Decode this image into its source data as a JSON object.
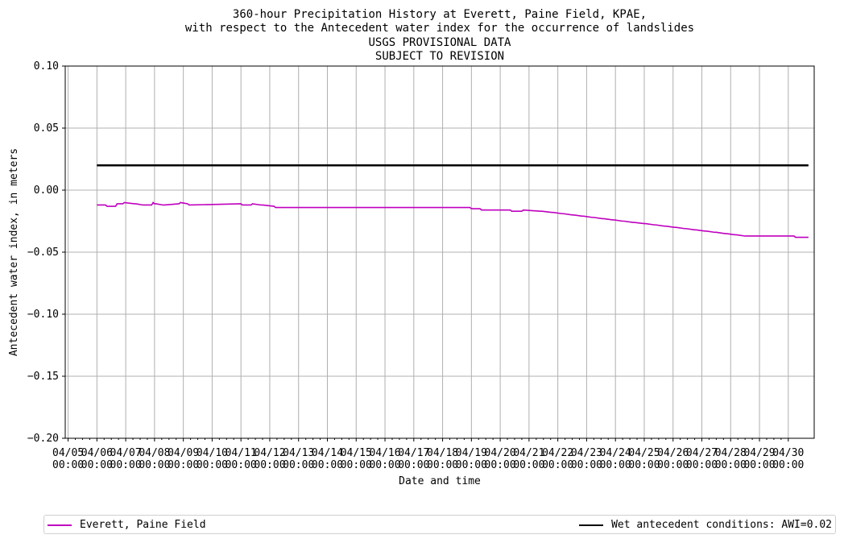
{
  "chart_data": {
    "type": "line",
    "title": [
      "360-hour Precipitation History at Everett, Paine Field, KPAE,",
      "with respect to the Antecedent water index for the occurrence of landslides",
      "USGS PROVISIONAL DATA",
      "SUBJECT TO REVISION"
    ],
    "xlabel": "Date and time",
    "ylabel": "Antecedent water index, in meters",
    "ylim": [
      -0.2,
      0.1
    ],
    "xlim": [
      -0.1,
      25.9
    ],
    "yticks": [
      "0.10",
      "0.05",
      "0.00",
      "−0.05",
      "−0.10",
      "−0.15",
      "−0.20"
    ],
    "ytick_values": [
      0.1,
      0.05,
      0.0,
      -0.05,
      -0.1,
      -0.15,
      -0.2
    ],
    "xticks": [
      {
        "date": "04/05",
        "time": "00:00"
      },
      {
        "date": "04/06",
        "time": "00:00"
      },
      {
        "date": "04/07",
        "time": "00:00"
      },
      {
        "date": "04/08",
        "time": "00:00"
      },
      {
        "date": "04/09",
        "time": "00:00"
      },
      {
        "date": "04/10",
        "time": "00:00"
      },
      {
        "date": "04/11",
        "time": "00:00"
      },
      {
        "date": "04/12",
        "time": "00:00"
      },
      {
        "date": "04/13",
        "time": "00:00"
      },
      {
        "date": "04/14",
        "time": "00:00"
      },
      {
        "date": "04/15",
        "time": "00:00"
      },
      {
        "date": "04/16",
        "time": "00:00"
      },
      {
        "date": "04/17",
        "time": "00:00"
      },
      {
        "date": "04/18",
        "time": "00:00"
      },
      {
        "date": "04/19",
        "time": "00:00"
      },
      {
        "date": "04/20",
        "time": "00:00"
      },
      {
        "date": "04/21",
        "time": "00:00"
      },
      {
        "date": "04/22",
        "time": "00:00"
      },
      {
        "date": "04/23",
        "time": "00:00"
      },
      {
        "date": "04/24",
        "time": "00:00"
      },
      {
        "date": "04/25",
        "time": "00:00"
      },
      {
        "date": "04/26",
        "time": "00:00"
      },
      {
        "date": "04/27",
        "time": "00:00"
      },
      {
        "date": "04/28",
        "time": "00:00"
      },
      {
        "date": "04/29",
        "time": "00:00"
      },
      {
        "date": "04/30",
        "time": "00:00"
      }
    ],
    "grid": true,
    "legend_placement": "below",
    "series": [
      {
        "name": "Everett, Paine Field",
        "color": "#bf00bf",
        "style": "step",
        "x": [
          1.0,
          1.3,
          1.35,
          1.65,
          1.7,
          1.9,
          1.95,
          2.3,
          2.35,
          2.6,
          2.65,
          2.9,
          2.95,
          3.0,
          3.05,
          3.3,
          3.35,
          3.85,
          3.9,
          4.15,
          4.2,
          6.0,
          6.05,
          6.35,
          6.4,
          6.7,
          6.75,
          7.15,
          7.2,
          13.95,
          14.0,
          14.3,
          14.35,
          15.35,
          15.4,
          15.75,
          15.8,
          16.4,
          16.45,
          16.8,
          16.85,
          17.15,
          17.2,
          17.5,
          17.55,
          17.85,
          17.9,
          18.2,
          18.25,
          18.55,
          18.6,
          18.9,
          18.95,
          19.25,
          19.3,
          19.6,
          19.65,
          20.0,
          20.05,
          20.35,
          20.4,
          20.7,
          20.75,
          21.05,
          21.1,
          21.4,
          21.45,
          21.75,
          21.8,
          22.1,
          22.15,
          22.45,
          22.5,
          22.8,
          22.85,
          23.15,
          23.2,
          23.5,
          23.55,
          23.85,
          23.9,
          24.2,
          24.25,
          24.55,
          24.6,
          25.2,
          25.25,
          25.7
        ],
        "y": [
          -0.012,
          -0.012,
          -0.013,
          -0.013,
          -0.011,
          -0.011,
          -0.01,
          -0.011,
          -0.011,
          -0.012,
          -0.012,
          -0.012,
          -0.01,
          -0.011,
          -0.011,
          -0.012,
          -0.012,
          -0.011,
          -0.01,
          -0.011,
          -0.012,
          -0.011,
          -0.012,
          -0.012,
          -0.011,
          -0.012,
          -0.012,
          -0.013,
          -0.014,
          -0.014,
          -0.015,
          -0.015,
          -0.016,
          -0.016,
          -0.017,
          -0.017,
          -0.016,
          -0.017,
          -0.017,
          -0.018,
          -0.018,
          -0.019,
          -0.019,
          -0.02,
          -0.02,
          -0.021,
          -0.021,
          -0.022,
          -0.022,
          -0.023,
          -0.023,
          -0.024,
          -0.024,
          -0.025,
          -0.025,
          -0.026,
          -0.026,
          -0.027,
          -0.027,
          -0.028,
          -0.028,
          -0.029,
          -0.029,
          -0.03,
          -0.03,
          -0.031,
          -0.031,
          -0.032,
          -0.032,
          -0.033,
          -0.033,
          -0.034,
          -0.034,
          -0.035,
          -0.035,
          -0.036,
          -0.036,
          -0.037,
          -0.037,
          -0.037,
          -0.037,
          -0.037,
          -0.037,
          -0.037,
          -0.037,
          -0.037,
          -0.038,
          -0.038
        ]
      },
      {
        "name": "Wet antecedent conditions: AWI=0.02",
        "color": "#000000",
        "style": "line",
        "x": [
          1.0,
          25.7
        ],
        "y": [
          0.02,
          0.02
        ]
      }
    ]
  }
}
